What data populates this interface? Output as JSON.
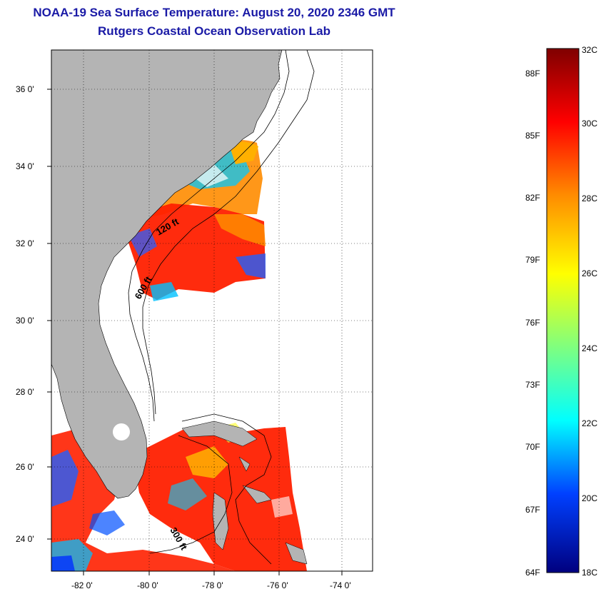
{
  "title": "NOAA-19 Sea Surface Temperature:  August 20, 2020 2346 GMT",
  "subtitle": "Rutgers Coastal Ocean Observation Lab",
  "map": {
    "lon_range": [
      -83,
      -73
    ],
    "lat_range": [
      23,
      37
    ],
    "lon_ticks": [
      "-82 0'",
      "-80 0'",
      "-78 0'",
      "-76 0'",
      "-74 0'"
    ],
    "lat_ticks": [
      "36 0'",
      "34 0'",
      "32 0'",
      "30 0'",
      "28 0'",
      "26 0'",
      "24 0'"
    ],
    "land_color": "#b4b4b4",
    "contour_labels": [
      "120 ft",
      "600 ft",
      "300 ft"
    ]
  },
  "colorbar": {
    "celsius_labels": [
      "32C",
      "30C",
      "28C",
      "26C",
      "24C",
      "22C",
      "20C",
      "18C"
    ],
    "fahrenheit_labels": [
      "88F",
      "85F",
      "82F",
      "79F",
      "76F",
      "73F",
      "70F",
      "67F",
      "64F"
    ],
    "colors": [
      "#7f0000",
      "#ff0000",
      "#ff8c00",
      "#ffff00",
      "#7fff7f",
      "#00ffff",
      "#0080ff",
      "#0000ff",
      "#00007f"
    ]
  }
}
